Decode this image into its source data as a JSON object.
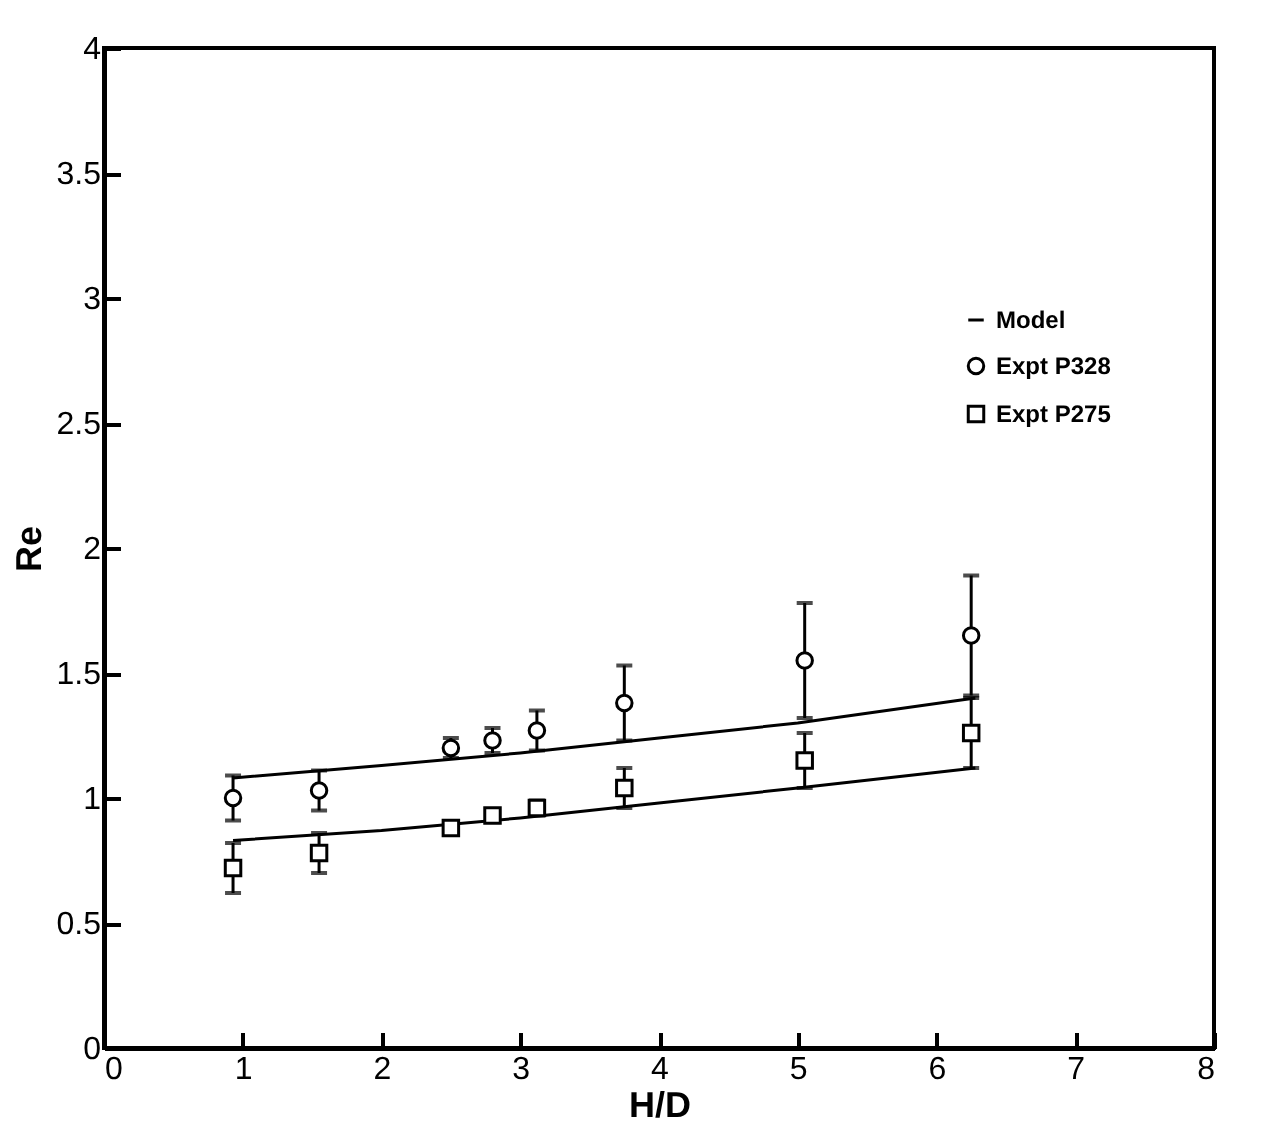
{
  "chart_data": {
    "type": "scatter",
    "xlabel": "H/D",
    "ylabel": "Re",
    "xlim": [
      0,
      8
    ],
    "xticks": [
      0,
      1,
      2,
      3,
      4,
      5,
      6,
      7,
      8
    ],
    "ylim": [
      0,
      4
    ],
    "yticks": [
      0,
      0.5,
      1,
      1.5,
      2,
      2.5,
      3,
      3.5,
      4
    ],
    "grid": false,
    "legend": "top right",
    "series": [
      {
        "name": "Model",
        "type": "line",
        "marker": "none",
        "color": "#000000",
        "x": [
          0.93,
          2,
          3,
          4,
          5,
          6.28
        ],
        "values": [
          1.08,
          1.13,
          1.18,
          1.24,
          1.3,
          1.4
        ]
      },
      {
        "type": "line",
        "marker": "none",
        "color": "#000000",
        "x": [
          0.93,
          2,
          3,
          4,
          5,
          6.28
        ],
        "values": [
          0.83,
          0.87,
          0.92,
          0.98,
          1.04,
          1.12
        ]
      },
      {
        "name": "Expt P328",
        "marker": "circle",
        "color": "#000000",
        "x": [
          0.93,
          1.55,
          2.5,
          2.8,
          3.12,
          3.75,
          5.05,
          6.25
        ],
        "values": [
          1.0,
          1.03,
          1.2,
          1.23,
          1.27,
          1.38,
          1.55,
          1.65
        ],
        "errors": [
          0.09,
          0.08,
          0.04,
          0.05,
          0.08,
          0.15,
          0.23,
          0.24
        ]
      },
      {
        "name": "Expt P275",
        "marker": "square",
        "color": "#000000",
        "x": [
          0.93,
          1.55,
          2.5,
          2.8,
          3.12,
          3.75,
          5.05,
          6.25
        ],
        "values": [
          0.72,
          0.78,
          0.88,
          0.93,
          0.96,
          1.04,
          1.15,
          1.26
        ],
        "errors": [
          0.1,
          0.08,
          0.02,
          0.02,
          0.03,
          0.08,
          0.11,
          0.14
        ]
      }
    ]
  }
}
